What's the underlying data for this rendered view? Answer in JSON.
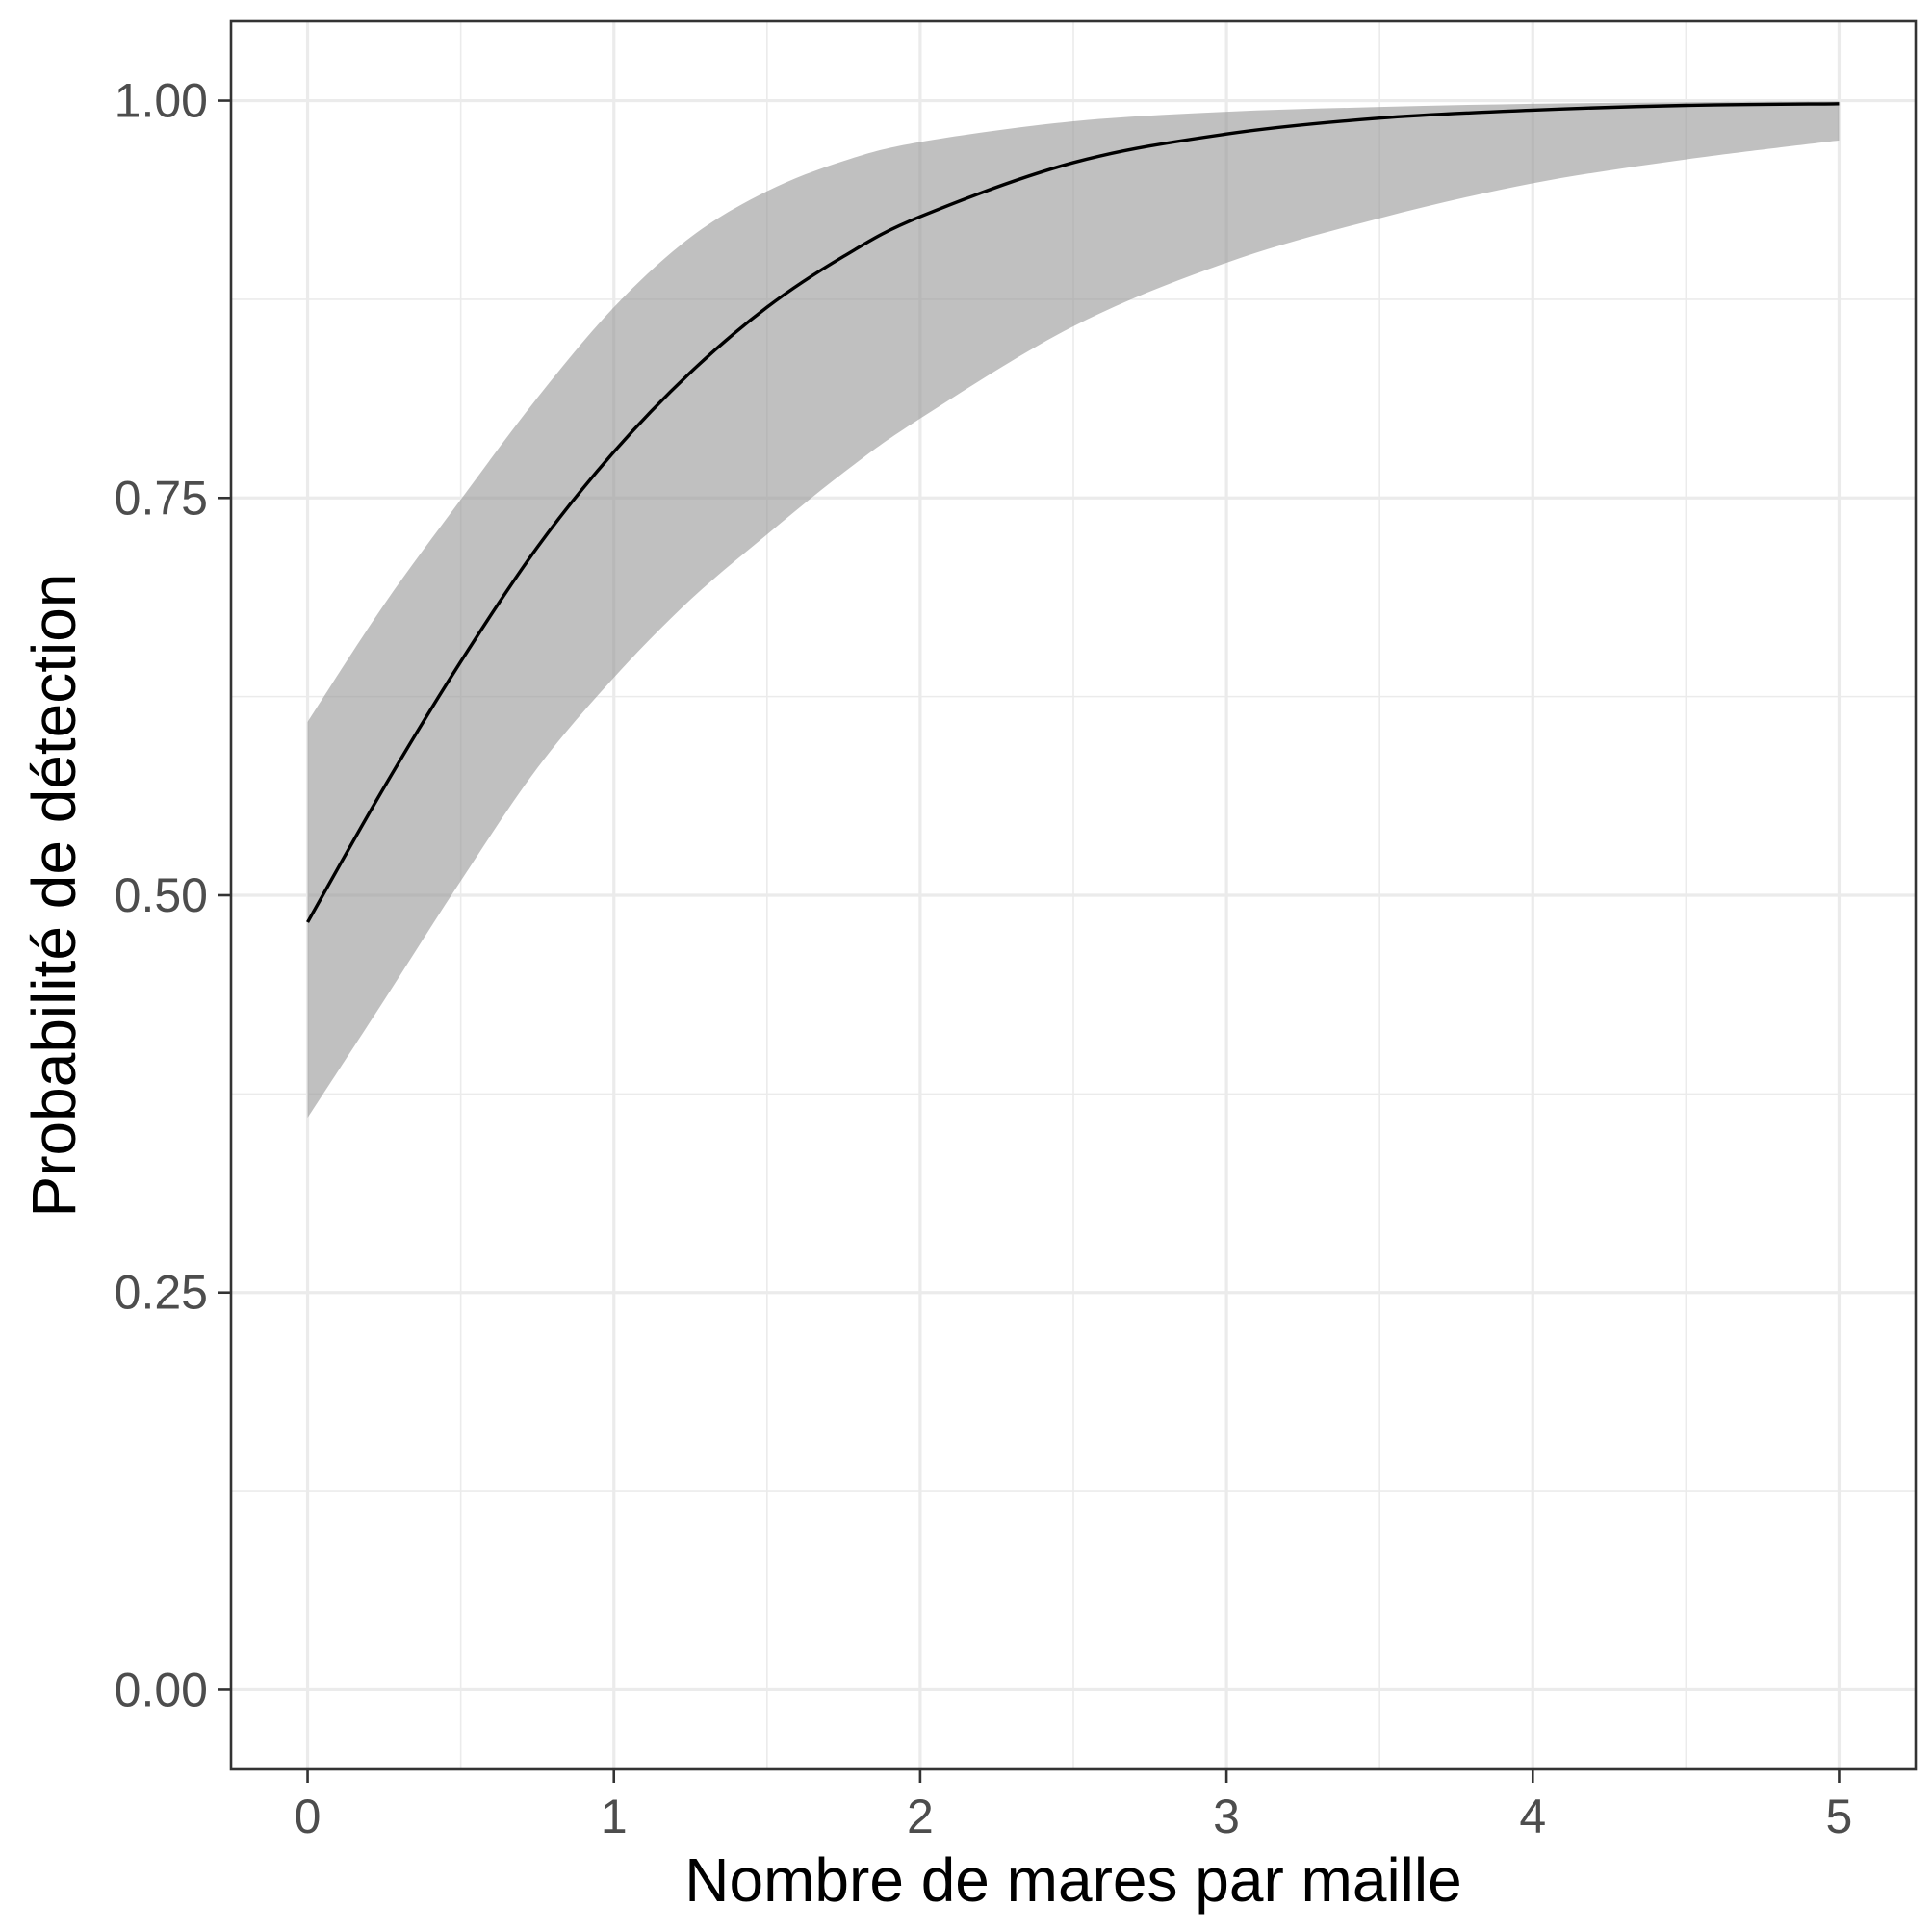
{
  "chart_data": {
    "type": "line",
    "title": "",
    "xlabel": "Nombre de mares par maille",
    "ylabel": "Probabilité de détection",
    "xlim": [
      -0.25,
      5.25
    ],
    "ylim": [
      -0.05,
      1.05
    ],
    "x_ticks": [
      0,
      1,
      2,
      3,
      4,
      5
    ],
    "x_tick_labels": [
      "0",
      "1",
      "2",
      "3",
      "4",
      "5"
    ],
    "y_ticks": [
      0,
      0.25,
      0.5,
      0.75,
      1
    ],
    "y_tick_labels": [
      "0.00",
      "0.25",
      "0.50",
      "0.75",
      "1.00"
    ],
    "grid": true,
    "legend": "none",
    "series": [
      {
        "x": [
          0,
          0.25,
          0.5,
          0.75,
          1,
          1.25,
          1.5,
          1.75,
          2,
          2.5,
          3,
          3.5,
          4,
          4.5,
          5
        ],
        "y": [
          0.483,
          0.568,
          0.647,
          0.719,
          0.779,
          0.829,
          0.87,
          0.902,
          0.927,
          0.961,
          0.979,
          0.989,
          0.994,
          0.997,
          0.998
        ],
        "lower": [
          0.36,
          0.434,
          0.509,
          0.58,
          0.637,
          0.686,
          0.727,
          0.766,
          0.8,
          0.858,
          0.898,
          0.926,
          0.948,
          0.963,
          0.975
        ],
        "upper": [
          0.609,
          0.683,
          0.749,
          0.813,
          0.87,
          0.914,
          0.943,
          0.962,
          0.974,
          0.987,
          0.993,
          0.996,
          0.998,
          0.999,
          0.9995
        ]
      }
    ]
  },
  "colors": {
    "band": "#999999",
    "line": "#000000",
    "grid": "#ebebeb",
    "border": "#333333",
    "tick_text": "#4d4d4d"
  }
}
